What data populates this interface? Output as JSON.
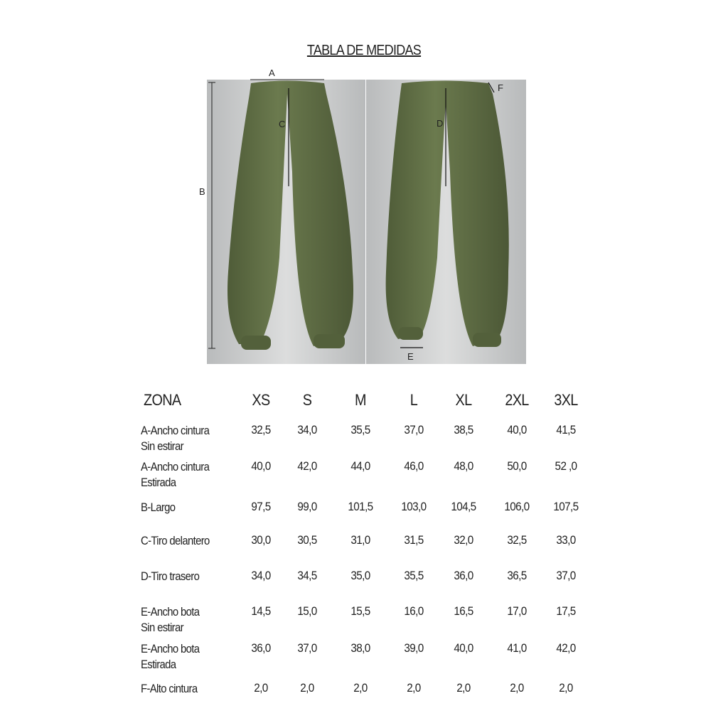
{
  "title": "TABLA DE MEDIDAS",
  "diagram_labels": {
    "a": "A",
    "b": "B",
    "c": "C",
    "d": "D",
    "e": "E",
    "f": "F"
  },
  "colors": {
    "garment": "#5f6e45",
    "background": "#d0d1d2"
  },
  "table": {
    "headers": [
      "ZONA",
      "XS",
      "S",
      "M",
      "L",
      "XL",
      "2XL",
      "3XL"
    ],
    "rows": [
      {
        "zone": "A-Ancho cintura\nSin estirar",
        "values": [
          "32,5",
          "34,0",
          "35,5",
          "37,0",
          "38,5",
          "40,0",
          "41,5"
        ]
      },
      {
        "zone": "A-Ancho cintura\nEstirada",
        "values": [
          "40,0",
          "42,0",
          "44,0",
          "46,0",
          "48,0",
          "50,0",
          "52 ,0"
        ]
      },
      {
        "zone": "B-Largo",
        "values": [
          "97,5",
          "99,0",
          "101,5",
          "103,0",
          "104,5",
          "106,0",
          "107,5"
        ]
      },
      {
        "zone": "C-Tiro delantero",
        "values": [
          "30,0",
          "30,5",
          "31,0",
          "31,5",
          "32,0",
          "32,5",
          "33,0"
        ]
      },
      {
        "zone": "D-Tiro trasero",
        "values": [
          "34,0",
          "34,5",
          "35,0",
          "35,5",
          "36,0",
          "36,5",
          "37,0"
        ]
      },
      {
        "zone": "E-Ancho bota\nSin estirar",
        "values": [
          "14,5",
          "15,0",
          "15,5",
          "16,0",
          "16,5",
          "17,0",
          "17,5"
        ]
      },
      {
        "zone": "E-Ancho bota\nEstirada",
        "values": [
          "36,0",
          "37,0",
          "38,0",
          "39,0",
          "40,0",
          "41,0",
          "42,0"
        ]
      },
      {
        "zone": "F-Alto cintura",
        "values": [
          "2,0",
          "2,0",
          "2,0",
          "2,0",
          "2,0",
          "2,0",
          "2,0"
        ]
      }
    ]
  }
}
